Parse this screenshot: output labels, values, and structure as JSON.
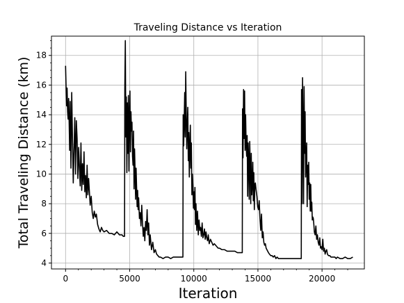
{
  "chart_data": {
    "type": "line",
    "title": "Traveling Distance vs Iteration",
    "xlabel": "Iteration",
    "ylabel": "Total Traveling Distance (km)",
    "xlim": [
      -1100,
      23300
    ],
    "ylim": [
      3.6,
      19.3
    ],
    "xticks": [
      0,
      5000,
      10000,
      15000,
      20000
    ],
    "yticks": [
      4,
      6,
      8,
      10,
      12,
      14,
      16,
      18
    ],
    "grid": true,
    "legend": "none",
    "line_color": "#000000",
    "series": [
      {
        "x": [
          0,
          40,
          80,
          120,
          160,
          200,
          240,
          280,
          320,
          360,
          420,
          480,
          540,
          600,
          660,
          720,
          780,
          840,
          900,
          960,
          1020,
          1080,
          1140,
          1200,
          1260,
          1320,
          1380,
          1440,
          1500,
          1560,
          1620,
          1680,
          1740,
          1800,
          1860,
          1920,
          2000,
          2080,
          2160,
          2240,
          2320,
          2400,
          2500,
          2600,
          2700,
          2800,
          2900,
          3000,
          3200,
          3400,
          3600,
          3800,
          4000,
          4200,
          4400,
          4500,
          4600,
          4620,
          4660,
          4700,
          4740,
          4780,
          4820,
          4860,
          4900,
          4940,
          4980,
          5020,
          5060,
          5100,
          5140,
          5180,
          5220,
          5260,
          5300,
          5340,
          5380,
          5420,
          5460,
          5500,
          5540,
          5580,
          5620,
          5660,
          5700,
          5760,
          5820,
          5880,
          5940,
          6000,
          6060,
          6120,
          6180,
          6240,
          6300,
          6360,
          6420,
          6480,
          6540,
          6600,
          6700,
          6800,
          6900,
          7000,
          7100,
          7200,
          7300,
          7400,
          7600,
          7800,
          8000,
          8200,
          8400,
          8600,
          8800,
          9000,
          9150,
          9170,
          9210,
          9250,
          9290,
          9330,
          9370,
          9410,
          9450,
          9490,
          9530,
          9570,
          9610,
          9650,
          9690,
          9730,
          9770,
          9810,
          9850,
          9890,
          9930,
          9970,
          10010,
          10050,
          10090,
          10130,
          10170,
          10230,
          10290,
          10350,
          10410,
          10470,
          10530,
          10590,
          10650,
          10710,
          10770,
          10830,
          10890,
          10950,
          11010,
          11070,
          11130,
          11200,
          11300,
          11400,
          11500,
          11600,
          11700,
          11800,
          11900,
          12000,
          12200,
          12400,
          12600,
          12800,
          13000,
          13200,
          13400,
          13600,
          13780,
          13800,
          13840,
          13880,
          13920,
          13960,
          14000,
          14040,
          14080,
          14120,
          14160,
          14200,
          14240,
          14280,
          14320,
          14360,
          14400,
          14440,
          14480,
          14520,
          14560,
          14600,
          14640,
          14680,
          14720,
          14760,
          14800,
          14860,
          14920,
          14980,
          15040,
          15100,
          15160,
          15220,
          15280,
          15340,
          15400,
          15460,
          15520,
          15580,
          15640,
          15700,
          15760,
          15820,
          15900,
          16000,
          16100,
          16200,
          16300,
          16400,
          16500,
          16600,
          16800,
          17000,
          17200,
          17400,
          17600,
          17800,
          18000,
          18200,
          18380,
          18400,
          18440,
          18480,
          18520,
          18560,
          18600,
          18640,
          18680,
          18720,
          18760,
          18800,
          18840,
          18880,
          18920,
          18960,
          19000,
          19040,
          19080,
          19120,
          19160,
          19200,
          19240,
          19280,
          19320,
          19360,
          19400,
          19460,
          19520,
          19580,
          19640,
          19700,
          19760,
          19820,
          19880,
          19940,
          20000,
          20060,
          20120,
          20180,
          20240,
          20300,
          20360,
          20420,
          20500,
          20600,
          20700,
          20800,
          20900,
          21000,
          21100,
          21200,
          21400,
          21600,
          21800,
          22000,
          22200,
          22400
        ],
        "y": [
          17.3,
          15.9,
          14.6,
          15.8,
          14.2,
          13.7,
          15.1,
          13.5,
          11.6,
          14.9,
          10.4,
          15.5,
          12.3,
          9.4,
          11.7,
          13.8,
          10.0,
          13.6,
          12.4,
          9.7,
          11.8,
          10.5,
          9.2,
          12.1,
          8.9,
          10.7,
          9.3,
          11.5,
          8.8,
          9.9,
          8.4,
          10.6,
          8.6,
          9.7,
          8.8,
          7.9,
          8.5,
          7.4,
          7.0,
          7.5,
          7.1,
          7.3,
          6.6,
          6.3,
          6.1,
          6.4,
          6.2,
          6.1,
          6.2,
          6.0,
          6.0,
          5.9,
          6.1,
          5.9,
          5.9,
          5.8,
          5.8,
          15.8,
          19.0,
          12.5,
          15.2,
          10.1,
          14.8,
          11.4,
          15.3,
          10.2,
          13.8,
          15.6,
          11.5,
          14.2,
          12.9,
          13.5,
          11.2,
          10.6,
          12.9,
          9.0,
          11.7,
          10.3,
          8.3,
          10.4,
          9.1,
          7.8,
          8.9,
          7.6,
          8.4,
          7.0,
          7.4,
          6.5,
          7.9,
          6.7,
          5.8,
          6.4,
          5.5,
          6.8,
          6.2,
          7.6,
          5.9,
          6.7,
          5.2,
          5.9,
          4.9,
          5.4,
          4.7,
          4.9,
          4.6,
          4.5,
          4.4,
          4.4,
          4.3,
          4.4,
          4.4,
          4.3,
          4.4,
          4.4,
          4.4,
          4.4,
          4.4,
          14.0,
          11.9,
          13.6,
          15.5,
          12.5,
          16.9,
          14.1,
          11.7,
          13.2,
          14.5,
          10.9,
          12.8,
          9.8,
          11.8,
          13.3,
          10.4,
          12.1,
          8.6,
          10.0,
          9.2,
          7.7,
          8.8,
          7.6,
          9.1,
          6.6,
          8.0,
          6.2,
          7.5,
          5.9,
          6.9,
          6.2,
          6.4,
          5.8,
          6.7,
          5.7,
          5.9,
          6.3,
          5.6,
          6.1,
          5.7,
          5.5,
          5.9,
          5.3,
          5.6,
          5.4,
          5.2,
          5.3,
          5.2,
          5.1,
          5.0,
          5.0,
          4.9,
          4.9,
          4.8,
          4.8,
          4.8,
          4.8,
          4.7,
          4.7,
          4.7,
          14.4,
          11.1,
          15.7,
          12.4,
          15.6,
          11.6,
          14.0,
          12.0,
          11.2,
          12.6,
          8.5,
          12.1,
          10.9,
          8.3,
          12.2,
          10.6,
          8.0,
          11.4,
          8.6,
          9.3,
          10.8,
          8.2,
          10.1,
          7.6,
          9.3,
          9.4,
          8.9,
          8.5,
          7.8,
          7.6,
          8.2,
          7.0,
          6.2,
          7.3,
          5.7,
          6.1,
          5.4,
          5.2,
          5.3,
          5.0,
          4.9,
          4.8,
          4.7,
          4.6,
          4.5,
          4.5,
          4.4,
          4.5,
          4.3,
          4.4,
          4.3,
          4.3,
          4.3,
          4.3,
          4.3,
          4.3,
          4.3,
          4.3,
          4.3,
          4.3,
          15.7,
          8.0,
          16.5,
          13.0,
          8.0,
          15.9,
          11.4,
          14.2,
          9.8,
          11.0,
          12.1,
          7.8,
          10.6,
          9.3,
          10.8,
          8.3,
          9.4,
          7.5,
          9.3,
          7.5,
          8.1,
          6.9,
          7.1,
          7.0,
          6.6,
          6.1,
          5.9,
          6.5,
          5.6,
          5.9,
          5.4,
          5.2,
          5.7,
          5.0,
          5.1,
          4.9,
          5.6,
          4.8,
          5.0,
          4.6,
          4.8,
          4.9,
          4.6,
          4.5,
          4.5,
          4.4,
          4.4,
          4.4,
          4.4,
          4.3,
          4.4,
          4.3,
          4.3,
          4.4,
          4.3,
          4.3,
          4.4
        ]
      }
    ]
  }
}
